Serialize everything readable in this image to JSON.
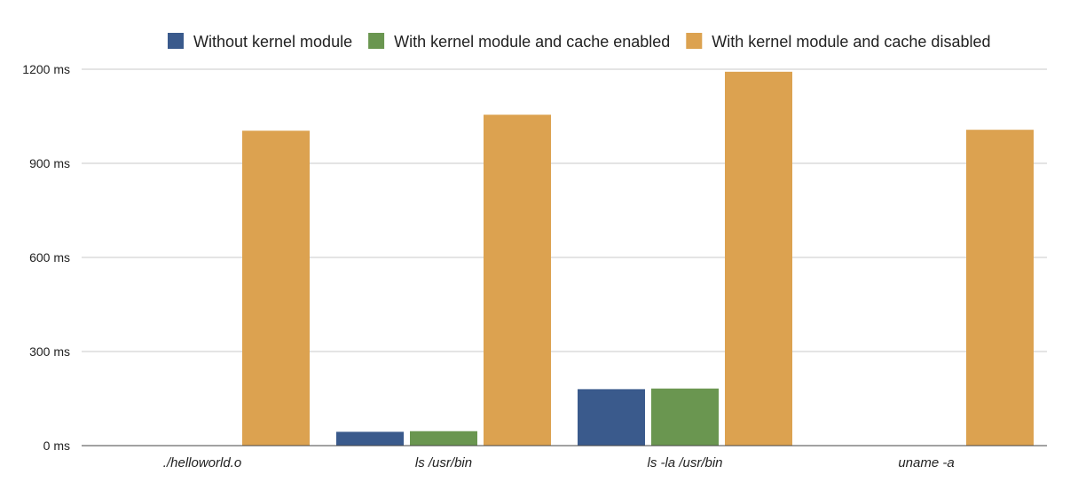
{
  "chart_data": {
    "type": "bar",
    "title": "",
    "xlabel": "",
    "ylabel": "",
    "categories": [
      "./helloworld.o",
      "ls /usr/bin",
      "ls -la /usr/bin",
      "uname -a"
    ],
    "series": [
      {
        "name": "Without kernel module",
        "color": "#3a5a8c",
        "values": [
          0,
          44,
          180,
          0
        ]
      },
      {
        "name": "With kernel module and cache enabled",
        "color": "#6a9650",
        "values": [
          0,
          46,
          182,
          0
        ]
      },
      {
        "name": "With kernel module and cache disabled",
        "color": "#dca250",
        "values": [
          1004,
          1055,
          1192,
          1007
        ]
      }
    ],
    "ylim": [
      0,
      1200
    ],
    "yticks": [
      0,
      300,
      600,
      900,
      1200
    ],
    "ytick_labels": [
      "0 ms",
      "300 ms",
      "600 ms",
      "900 ms",
      "1200 ms"
    ],
    "grid": true,
    "legend_position": "top"
  }
}
